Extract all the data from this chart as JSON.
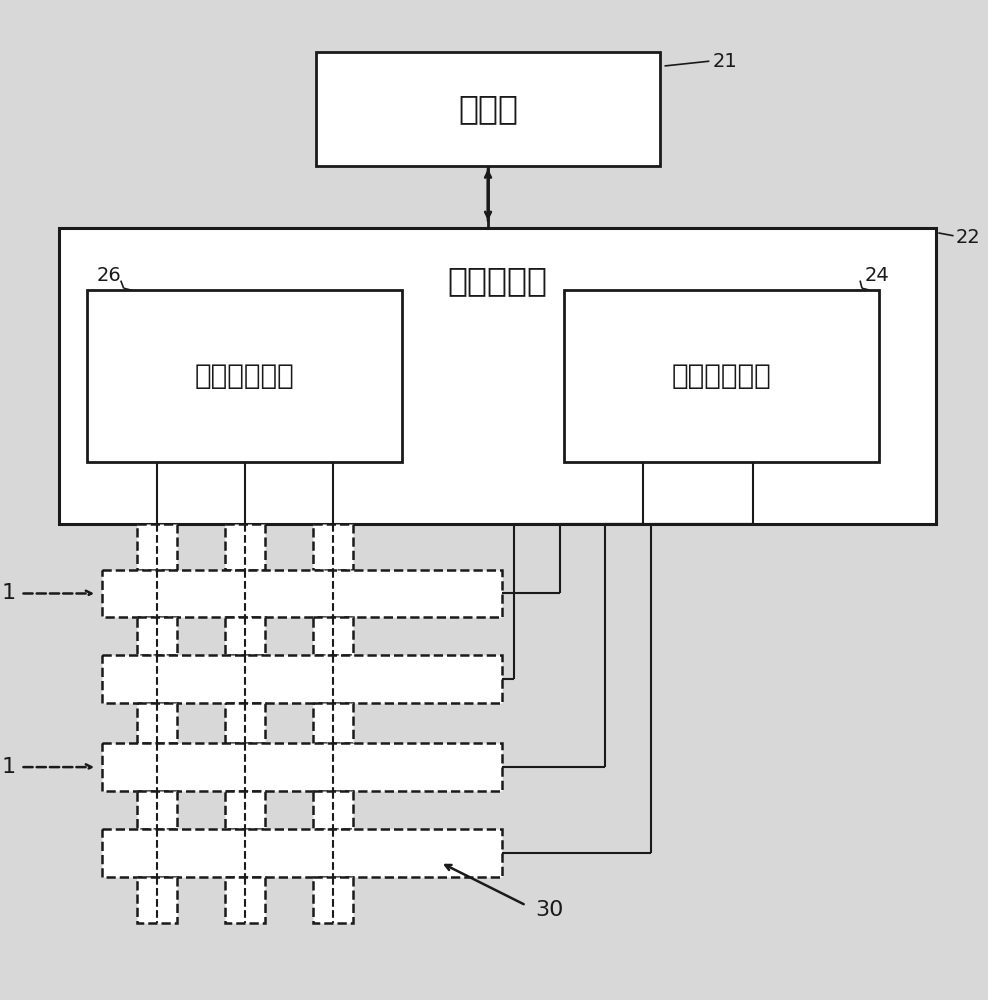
{
  "bg_color": "#d8d8d8",
  "box_fill": "#ffffff",
  "line_color": "#1a1a1a",
  "text_color": "#1a1a1a",
  "font_family": "Arial Unicode MS",
  "processor_label": "处理器",
  "array_driver_label": "阵列驱动器",
  "col_driver_label": "列驱动器电路",
  "row_driver_label": "行驱动器电路",
  "ref_21": "21",
  "ref_22": "22",
  "ref_24": "24",
  "ref_26": "26",
  "ref_30": "30",
  "ref_1a": "1",
  "ref_1b": "1",
  "lw_main": 2.0,
  "lw_thin": 1.5,
  "fontsize_label": 20,
  "fontsize_ref": 14
}
